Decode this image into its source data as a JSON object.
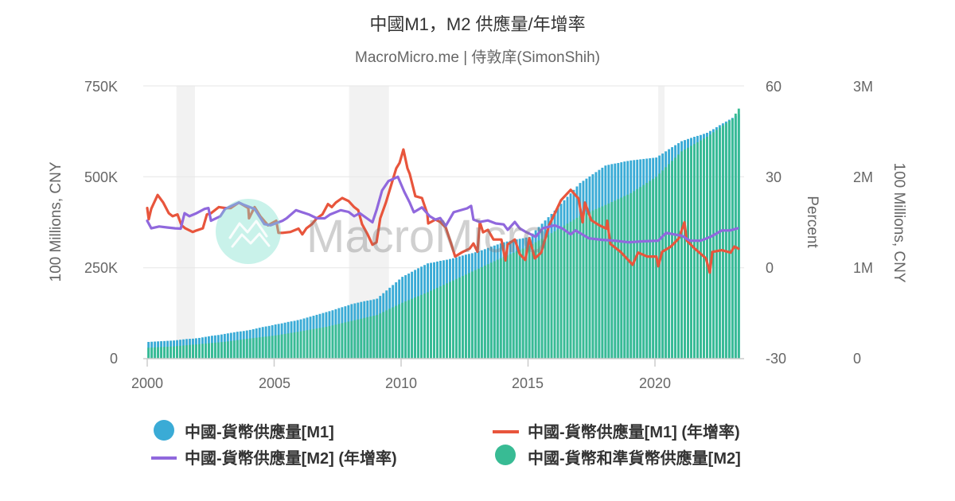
{
  "header": {
    "title": "中國M1，M2 供應量/年增率",
    "subtitle": "MacroMicro.me | 侍敦庠(SimonShih)"
  },
  "watermark": {
    "text": "MacroMicro",
    "icon": "mountain-logo-icon"
  },
  "legend": {
    "items": [
      {
        "label": "中國-貨幣供應量[M1]",
        "marker": "circle",
        "color": "#3aabd6"
      },
      {
        "label": "中國-貨幣供應量[M1] (年增率)",
        "marker": "line",
        "color": "#e8553c"
      },
      {
        "label": "中國-貨幣供應量[M2] (年增率)",
        "marker": "line",
        "color": "#9068dd"
      },
      {
        "label": "中國-貨幣和準貨幣供應量[M2]",
        "marker": "circle",
        "color": "#38bb94"
      }
    ]
  },
  "chart_data": {
    "type": "bar",
    "secondary_type": "line",
    "title": "中國M1，M2 供應量/年增率",
    "subtitle": "MacroMicro.me | 侍敦庠(SimonShih)",
    "x_axis": {
      "ticks": [
        "2000",
        "2005",
        "2010",
        "2015",
        "2020"
      ],
      "range": [
        2000,
        2023.3
      ]
    },
    "y_left": {
      "label": "100 Millions, CNY",
      "ticks": [
        "0",
        "250K",
        "500K",
        "750K"
      ],
      "range": [
        0,
        750000
      ]
    },
    "y_percent": {
      "label": "Percent",
      "ticks": [
        "-30",
        "0",
        "30",
        "60"
      ],
      "range": [
        -30,
        60
      ]
    },
    "y_right": {
      "label": "100 Millions, CNY",
      "ticks": [
        "0",
        "1M",
        "2M",
        "3M"
      ],
      "range": [
        0,
        3000000
      ]
    },
    "grid": true,
    "legend_position": "bottom",
    "shaded_periods": [
      [
        2001.15,
        2001.88
      ],
      [
        2007.95,
        2009.52
      ],
      [
        2020.13,
        2020.38
      ]
    ],
    "bar_x": [
      2000,
      2000.25,
      2000.5,
      2000.75,
      2001,
      2001.25,
      2001.5,
      2001.75,
      2002,
      2002.25,
      2002.5,
      2002.75,
      2003,
      2003.25,
      2003.5,
      2003.75,
      2004,
      2004.25,
      2004.5,
      2004.75,
      2005,
      2005.25,
      2005.5,
      2005.75,
      2006,
      2006.25,
      2006.5,
      2006.75,
      2007,
      2007.25,
      2007.5,
      2007.75,
      2008,
      2008.25,
      2008.5,
      2008.75,
      2009,
      2009.25,
      2009.5,
      2009.75,
      2010,
      2010.25,
      2010.5,
      2010.75,
      2011,
      2011.25,
      2011.5,
      2011.75,
      2012,
      2012.25,
      2012.5,
      2012.75,
      2013,
      2013.25,
      2013.5,
      2013.75,
      2014,
      2014.25,
      2014.5,
      2014.75,
      2015,
      2015.25,
      2015.5,
      2015.75,
      2016,
      2016.25,
      2016.5,
      2016.75,
      2017,
      2017.25,
      2017.5,
      2017.75,
      2018,
      2018.25,
      2018.5,
      2018.75,
      2019,
      2019.25,
      2019.5,
      2019.75,
      2020,
      2020.25,
      2020.5,
      2020.75,
      2021,
      2021.25,
      2021.5,
      2021.75,
      2022,
      2022.25,
      2022.5,
      2022.75,
      2023,
      2023.25
    ],
    "series": [
      {
        "name": "中國-貨幣供應量[M1]",
        "chart_type": "bar",
        "axis": "y_left",
        "color": "#3aabd6",
        "values": [
          46000,
          47000,
          48000,
          49000,
          50000,
          52000,
          54000,
          55000,
          57000,
          60000,
          63000,
          65000,
          68000,
          71000,
          74000,
          76000,
          79000,
          83000,
          87000,
          90000,
          94000,
          97000,
          101000,
          104000,
          108000,
          113000,
          118000,
          123000,
          128000,
          133000,
          139000,
          144000,
          150000,
          154000,
          158000,
          161000,
          165000,
          180000,
          195000,
          210000,
          225000,
          234000,
          244000,
          253000,
          262000,
          265000,
          269000,
          272000,
          276000,
          281000,
          286000,
          290000,
          295000,
          301000,
          308000,
          314000,
          320000,
          324000,
          328000,
          331000,
          335000,
          353000,
          371000,
          389000,
          407000,
          426000,
          445000,
          464000,
          483000,
          495000,
          507000,
          519000,
          531000,
          535000,
          538000,
          542000,
          545000,
          547000,
          549000,
          551000,
          553000,
          564000,
          576000,
          587000,
          598000,
          604000,
          610000,
          615000,
          621000,
          631000,
          642000,
          652000,
          662000,
          672000
        ]
      },
      {
        "name": "中國-貨幣和準貨幣供應量[M2]",
        "chart_type": "bar",
        "axis": "y_right",
        "color": "#38bb94",
        "values": [
          120000,
          124000,
          128000,
          131000,
          135000,
          141000,
          148000,
          154000,
          160000,
          166000,
          173000,
          179000,
          185000,
          194000,
          204000,
          213000,
          222000,
          230000,
          239000,
          247000,
          255000,
          266000,
          278000,
          289000,
          300000,
          313000,
          325000,
          338000,
          350000,
          366000,
          383000,
          399000,
          415000,
          431000,
          448000,
          464000,
          480000,
          514000,
          548000,
          581000,
          615000,
          644000,
          673000,
          701000,
          730000,
          763000,
          795000,
          828000,
          860000,
          893000,
          925000,
          958000,
          990000,
          1023000,
          1055000,
          1088000,
          1120000,
          1150000,
          1180000,
          1210000,
          1240000,
          1280000,
          1320000,
          1360000,
          1400000,
          1443000,
          1485000,
          1528000,
          1570000,
          1600000,
          1630000,
          1660000,
          1690000,
          1723000,
          1755000,
          1788000,
          1820000,
          1865000,
          1910000,
          1955000,
          2000000,
          2070000,
          2140000,
          2210000,
          2280000,
          2320000,
          2360000,
          2400000,
          2440000,
          2490000,
          2540000,
          2590000,
          2640000,
          2750000
        ]
      },
      {
        "name": "中國-貨幣供應量[M1] (年增率)",
        "chart_type": "line",
        "axis": "y_percent",
        "color": "#e8553c",
        "points": [
          [
            2000.0,
            19.7
          ],
          [
            2000.06,
            16.0
          ],
          [
            2000.16,
            19.5
          ],
          [
            2000.41,
            24.0
          ],
          [
            2000.63,
            21.5
          ],
          [
            2000.85,
            18.0
          ],
          [
            2001.0,
            17.0
          ],
          [
            2001.19,
            17.6
          ],
          [
            2001.35,
            14.0
          ],
          [
            2001.5,
            13.0
          ],
          [
            2001.79,
            11.8
          ],
          [
            2001.94,
            12.3
          ],
          [
            2002.19,
            13.0
          ],
          [
            2002.35,
            17.6
          ],
          [
            2002.51,
            18.0
          ],
          [
            2002.82,
            20.0
          ],
          [
            2003.07,
            19.7
          ],
          [
            2003.29,
            19.7
          ],
          [
            2003.61,
            21.5
          ],
          [
            2003.98,
            19.7
          ],
          [
            2004.01,
            16.3
          ],
          [
            2004.23,
            20.0
          ],
          [
            2004.45,
            17.0
          ],
          [
            2004.76,
            14.0
          ],
          [
            2005.08,
            15.5
          ],
          [
            2005.17,
            11.5
          ],
          [
            2005.33,
            11.5
          ],
          [
            2005.64,
            11.8
          ],
          [
            2005.96,
            12.9
          ],
          [
            2006.11,
            11.0
          ],
          [
            2006.27,
            13.0
          ],
          [
            2006.49,
            14.4
          ],
          [
            2006.68,
            16.3
          ],
          [
            2006.9,
            17.6
          ],
          [
            2007.12,
            21.0
          ],
          [
            2007.27,
            20.0
          ],
          [
            2007.43,
            21.5
          ],
          [
            2007.68,
            23.0
          ],
          [
            2007.93,
            22.0
          ],
          [
            2008.15,
            20.0
          ],
          [
            2008.31,
            19.0
          ],
          [
            2008.46,
            14.4
          ],
          [
            2008.68,
            11.0
          ],
          [
            2008.87,
            7.6
          ],
          [
            2009.03,
            8.4
          ],
          [
            2009.18,
            16.3
          ],
          [
            2009.4,
            21.5
          ],
          [
            2009.62,
            27.6
          ],
          [
            2009.81,
            32.8
          ],
          [
            2009.94,
            34.6
          ],
          [
            2010.09,
            39.0
          ],
          [
            2010.25,
            32.8
          ],
          [
            2010.34,
            31.0
          ],
          [
            2010.56,
            23.6
          ],
          [
            2010.82,
            23.0
          ],
          [
            2011.03,
            17.8
          ],
          [
            2011.07,
            14.6
          ],
          [
            2011.35,
            15.9
          ],
          [
            2011.54,
            15.1
          ],
          [
            2011.76,
            13.3
          ],
          [
            2011.97,
            8.0
          ],
          [
            2012.13,
            3.7
          ],
          [
            2012.38,
            5.0
          ],
          [
            2012.7,
            6.3
          ],
          [
            2012.85,
            8.0
          ],
          [
            2013.01,
            5.3
          ],
          [
            2013.1,
            15.1
          ],
          [
            2013.23,
            11.7
          ],
          [
            2013.42,
            12.5
          ],
          [
            2013.64,
            9.3
          ],
          [
            2013.95,
            9.3
          ],
          [
            2014.11,
            2.4
          ],
          [
            2014.2,
            7.7
          ],
          [
            2014.48,
            9.3
          ],
          [
            2014.67,
            4.5
          ],
          [
            2014.89,
            2.6
          ],
          [
            2015.05,
            9.7
          ],
          [
            2015.27,
            3.1
          ],
          [
            2015.52,
            5.0
          ],
          [
            2015.83,
            14.0
          ],
          [
            2016.08,
            18.4
          ],
          [
            2016.3,
            22.3
          ],
          [
            2016.68,
            25.7
          ],
          [
            2016.99,
            22.8
          ],
          [
            2017.15,
            15.0
          ],
          [
            2017.24,
            21.5
          ],
          [
            2017.49,
            15.7
          ],
          [
            2017.81,
            14.0
          ],
          [
            2018.09,
            12.9
          ],
          [
            2018.12,
            15.5
          ],
          [
            2018.24,
            7.9
          ],
          [
            2018.65,
            5.2
          ],
          [
            2019.12,
            1.0
          ],
          [
            2019.34,
            5.0
          ],
          [
            2019.69,
            3.7
          ],
          [
            2020.06,
            3.7
          ],
          [
            2020.13,
            0.5
          ],
          [
            2020.28,
            5.2
          ],
          [
            2020.63,
            7.0
          ],
          [
            2020.94,
            9.7
          ],
          [
            2021.16,
            15.0
          ],
          [
            2021.25,
            9.0
          ],
          [
            2021.57,
            6.3
          ],
          [
            2022.01,
            3.1
          ],
          [
            2022.16,
            -1.6
          ],
          [
            2022.26,
            5.2
          ],
          [
            2022.63,
            5.8
          ],
          [
            2022.98,
            5.0
          ],
          [
            2023.13,
            7.0
          ],
          [
            2023.29,
            6.3
          ]
        ]
      },
      {
        "name": "中國-貨幣供應量[M2] (年增率)",
        "chart_type": "line",
        "axis": "y_percent",
        "color": "#9068dd",
        "points": [
          [
            2000.0,
            15.5
          ],
          [
            2000.16,
            13.0
          ],
          [
            2000.47,
            13.6
          ],
          [
            2000.78,
            13.3
          ],
          [
            2001.1,
            13.0
          ],
          [
            2001.32,
            12.9
          ],
          [
            2001.47,
            18.0
          ],
          [
            2001.66,
            17.0
          ],
          [
            2001.94,
            18.0
          ],
          [
            2002.26,
            19.4
          ],
          [
            2002.41,
            19.7
          ],
          [
            2002.51,
            15.5
          ],
          [
            2002.88,
            17.0
          ],
          [
            2003.07,
            19.4
          ],
          [
            2003.61,
            21.5
          ],
          [
            2003.82,
            20.7
          ],
          [
            2004.23,
            19.4
          ],
          [
            2004.61,
            14.4
          ],
          [
            2004.86,
            14.0
          ],
          [
            2005.33,
            15.5
          ],
          [
            2005.49,
            16.3
          ],
          [
            2005.86,
            19.0
          ],
          [
            2006.36,
            17.6
          ],
          [
            2006.68,
            16.3
          ],
          [
            2006.99,
            16.3
          ],
          [
            2007.21,
            17.6
          ],
          [
            2007.62,
            19.0
          ],
          [
            2007.93,
            18.4
          ],
          [
            2008.15,
            17.0
          ],
          [
            2008.37,
            18.0
          ],
          [
            2008.87,
            15.0
          ],
          [
            2009.03,
            19.0
          ],
          [
            2009.25,
            25.5
          ],
          [
            2009.5,
            28.6
          ],
          [
            2009.87,
            30.0
          ],
          [
            2010.13,
            25.0
          ],
          [
            2010.34,
            21.5
          ],
          [
            2010.5,
            18.3
          ],
          [
            2010.82,
            19.9
          ],
          [
            2011.13,
            17.0
          ],
          [
            2011.35,
            15.9
          ],
          [
            2011.54,
            16.4
          ],
          [
            2011.76,
            13.8
          ],
          [
            2012.07,
            18.3
          ],
          [
            2012.6,
            19.6
          ],
          [
            2012.76,
            20.4
          ],
          [
            2012.85,
            15.9
          ],
          [
            2013.1,
            15.1
          ],
          [
            2013.42,
            15.6
          ],
          [
            2013.73,
            14.6
          ],
          [
            2014.04,
            14.3
          ],
          [
            2014.2,
            12.5
          ],
          [
            2014.48,
            15.1
          ],
          [
            2014.67,
            13.0
          ],
          [
            2014.89,
            11.9
          ],
          [
            2015.11,
            11.0
          ],
          [
            2015.3,
            10.2
          ],
          [
            2015.58,
            13.0
          ],
          [
            2016.05,
            14.0
          ],
          [
            2016.36,
            12.9
          ],
          [
            2016.68,
            11.0
          ],
          [
            2016.87,
            12.3
          ],
          [
            2017.4,
            9.7
          ],
          [
            2017.93,
            9.2
          ],
          [
            2018.43,
            8.9
          ],
          [
            2018.97,
            8.4
          ],
          [
            2019.5,
            8.7
          ],
          [
            2020.13,
            8.9
          ],
          [
            2020.44,
            11.5
          ],
          [
            2020.75,
            11.0
          ],
          [
            2021.07,
            10.5
          ],
          [
            2021.38,
            8.9
          ],
          [
            2021.79,
            8.9
          ],
          [
            2022.19,
            10.2
          ],
          [
            2022.63,
            12.3
          ],
          [
            2022.95,
            12.3
          ],
          [
            2023.26,
            13.0
          ]
        ]
      }
    ]
  }
}
